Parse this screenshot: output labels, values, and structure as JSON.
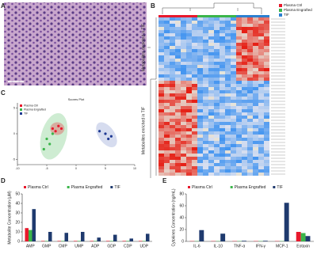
{
  "panels": {
    "a": {
      "label": "A"
    },
    "b": {
      "label": "B",
      "depleted": "Metabolites depleted in TIF",
      "enriched": "Metabolites enriched in TIF",
      "legend": [
        "Plasma Ctrl",
        "Plasma Engrafted",
        "TIF"
      ]
    },
    "c": {
      "label": "C"
    },
    "d": {
      "label": "D"
    },
    "e": {
      "label": "E"
    }
  },
  "chart_data": [
    {
      "type": "scatter",
      "title": "Scores Plot",
      "xlim": [
        -10,
        10
      ],
      "ylim": [
        -6,
        6
      ],
      "xticks": [
        -10,
        -5,
        0,
        5,
        10
      ],
      "yticks": [
        -5,
        0,
        5
      ],
      "series": [
        {
          "name": "Plasma Ctrl",
          "color": "#e8192c",
          "x": [
            -4,
            -3,
            -3.5,
            -2.5
          ],
          "values": [
            1,
            1.5,
            0.5,
            1
          ]
        },
        {
          "name": "Plasma Engrafted",
          "color": "#3bb54a",
          "x": [
            -5,
            -4.5,
            -4,
            -5.5
          ],
          "values": [
            -1,
            -2,
            0,
            -3
          ]
        },
        {
          "name": "TIF",
          "color": "#1f3a93",
          "x": [
            4,
            5,
            6,
            5.5
          ],
          "values": [
            0.5,
            0,
            -0.5,
            -1
          ]
        }
      ]
    },
    {
      "type": "bar",
      "y_label": "Metabolite Concentration (μM)",
      "categories": [
        "AMP",
        "GMP",
        "CMP",
        "UMP",
        "ADP",
        "GDP",
        "CDP",
        "UDP"
      ],
      "ylim": [
        0,
        50
      ],
      "yticks": [
        0,
        10,
        20,
        30,
        40,
        50
      ],
      "series": [
        {
          "name": "Plasma Ctrl",
          "color": "#e8192c",
          "values": [
            14,
            0.5,
            0.5,
            0.5,
            0.5,
            0.5,
            0.5,
            0.5
          ]
        },
        {
          "name": "Plasma Engrafted",
          "color": "#3bb54a",
          "values": [
            12,
            0.5,
            0.5,
            0.5,
            0.5,
            0.5,
            0.5,
            0.5
          ]
        },
        {
          "name": "TIF",
          "color": "#1f3a6e",
          "values": [
            34,
            10,
            9,
            10,
            4,
            7,
            3,
            8
          ]
        }
      ]
    },
    {
      "type": "bar",
      "y_label": "Cytokines Concentration (ng/mL)",
      "categories": [
        "IL-6",
        "IL-10",
        "TNF-α",
        "IFN-γ",
        "MCP-1",
        "Eotaxin"
      ],
      "ylim": [
        0,
        80
      ],
      "yticks": [
        0,
        20,
        40,
        60,
        80
      ],
      "series": [
        {
          "name": "Plasma Ctrl",
          "color": "#e8192c",
          "values": [
            0.5,
            0.5,
            0.5,
            0.5,
            0.5,
            16
          ]
        },
        {
          "name": "Plasma Engrafted",
          "color": "#3bb54a",
          "values": [
            0.5,
            0.5,
            0.5,
            0.5,
            0.5,
            14
          ]
        },
        {
          "name": "TIF",
          "color": "#1f3a6e",
          "values": [
            19,
            13,
            1,
            1,
            65,
            9
          ]
        }
      ]
    }
  ]
}
